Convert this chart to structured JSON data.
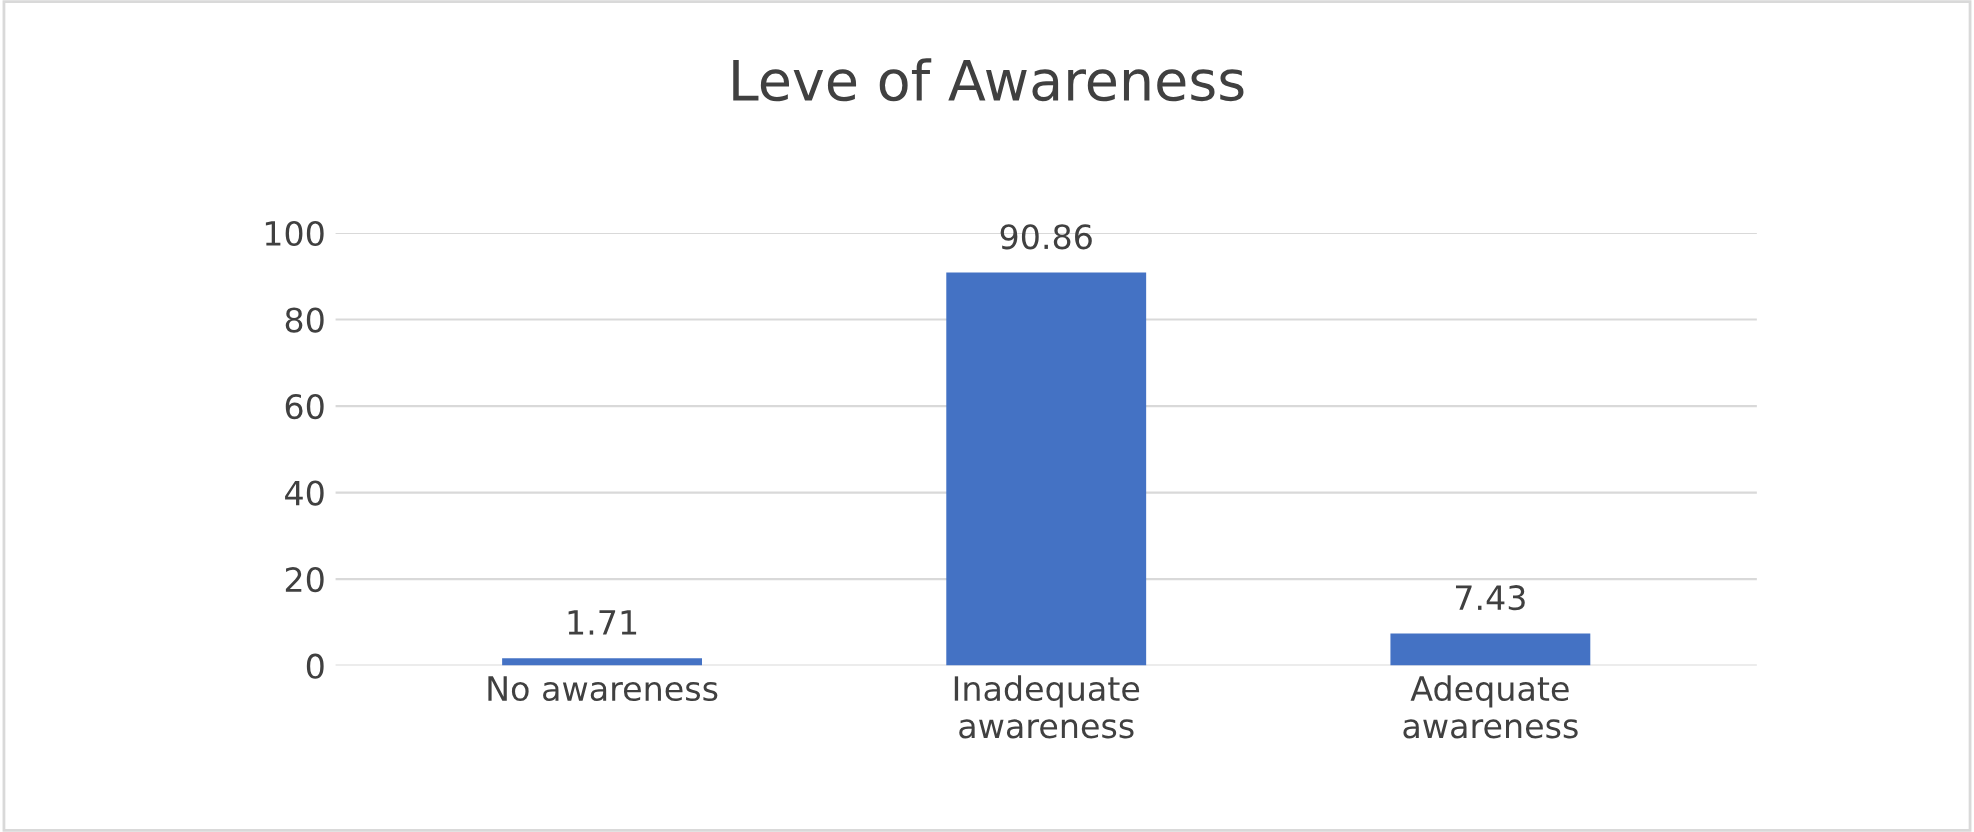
{
  "chart_data": {
    "type": "bar",
    "title": "Leve of Awareness",
    "categories": [
      "No awareness",
      "Inadequate\nawareness",
      "Adequate\nawareness"
    ],
    "values": [
      1.71,
      90.86,
      7.43
    ],
    "color": "#4472c4",
    "ylim": [
      0,
      100
    ],
    "yticks": [
      0,
      20,
      40,
      60,
      80,
      100
    ],
    "grid": "y",
    "data_labels": true
  }
}
